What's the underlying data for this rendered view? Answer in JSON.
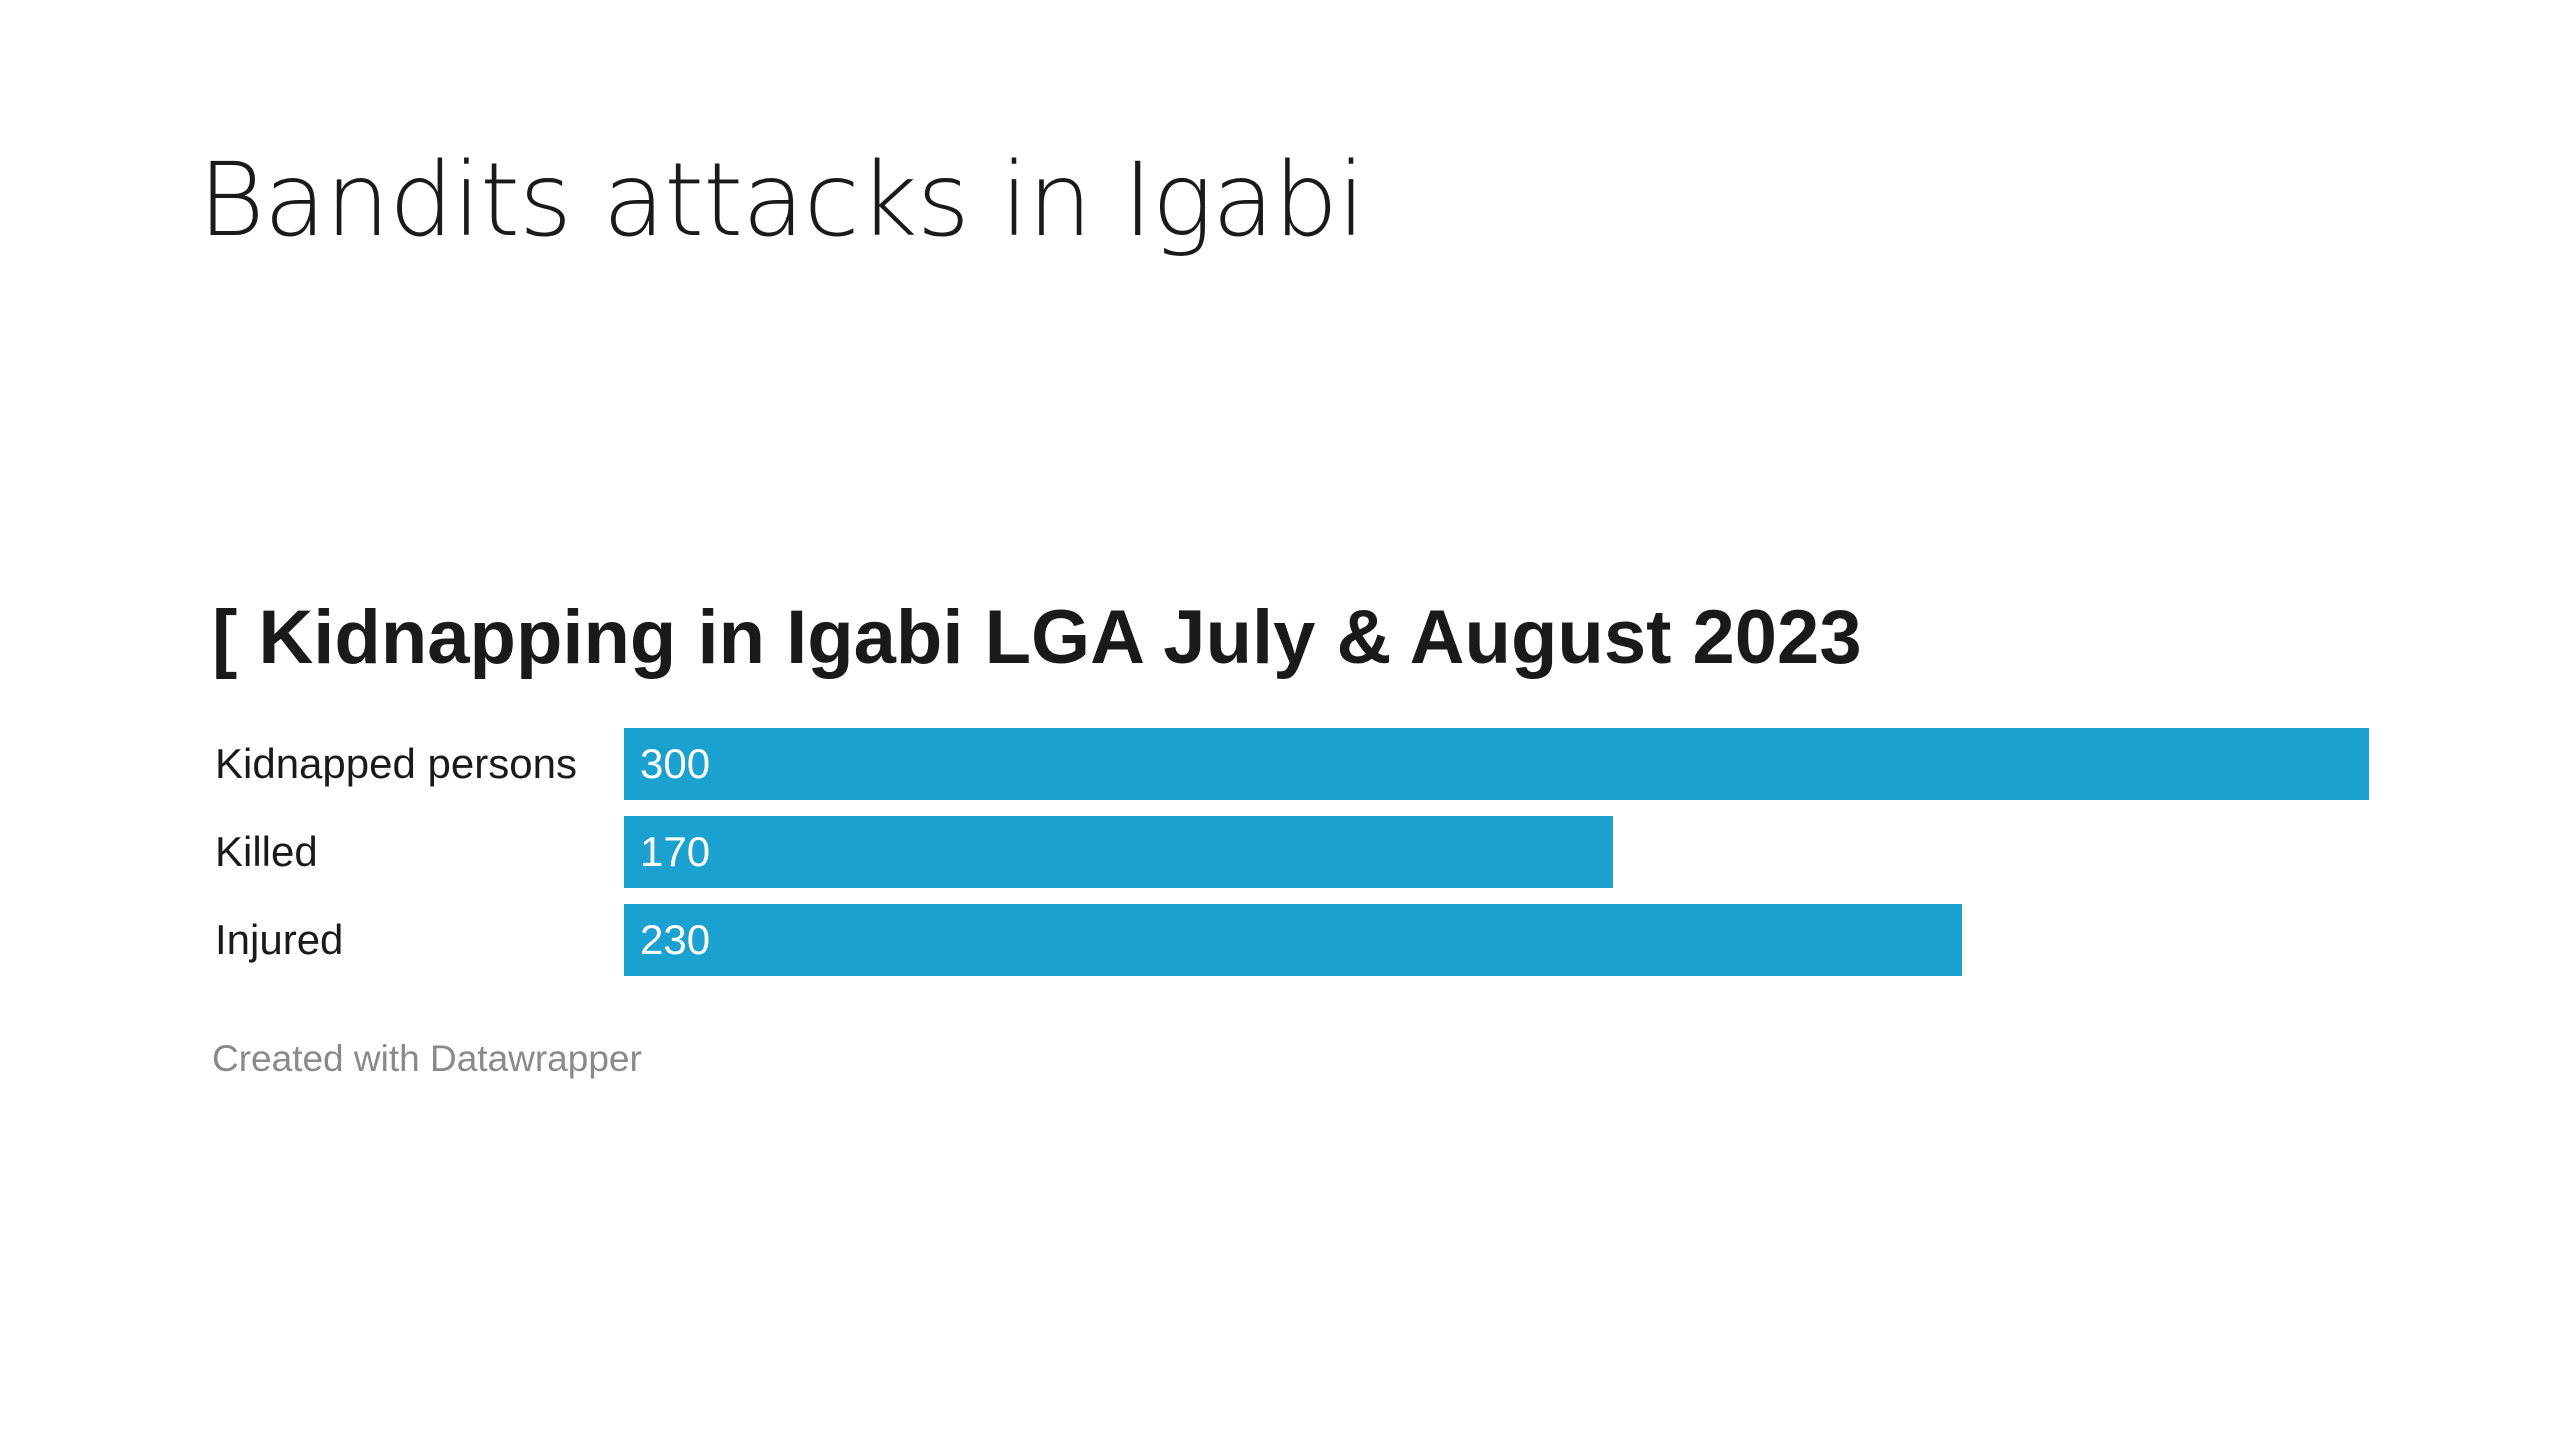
{
  "slide": {
    "title": "Bandits attacks in Igabi"
  },
  "chart_data": {
    "type": "bar",
    "orientation": "horizontal",
    "title": "[ Kidnapping in Igabi LGA July & August 2023",
    "categories": [
      "Kidnapped persons",
      "Killed",
      "Injured"
    ],
    "values": [
      300,
      170,
      230
    ],
    "value_labels": [
      "300",
      "170",
      "230"
    ],
    "xlim": [
      0,
      300
    ],
    "bar_color": "#1aa1cf",
    "grid": false,
    "legend": "none",
    "credit": "Created with Datawrapper"
  }
}
